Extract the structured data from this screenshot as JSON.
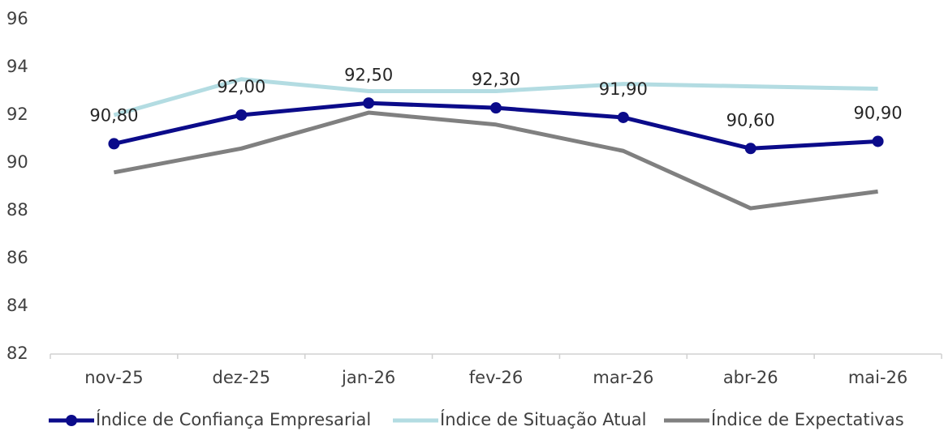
{
  "chart_data": {
    "type": "line",
    "categories": [
      "nov-25",
      "dez-25",
      "jan-26",
      "fev-26",
      "mar-26",
      "abr-26",
      "mai-26"
    ],
    "series": [
      {
        "name": "Índice de Confiança Empresarial",
        "color": "#0b0b8a",
        "marker": true,
        "values": [
          90.8,
          92.0,
          92.5,
          92.3,
          91.9,
          90.6,
          90.9
        ],
        "value_labels": [
          "90,80",
          "92,00",
          "92,50",
          "92,30",
          "91,90",
          "90,60",
          "90,90"
        ]
      },
      {
        "name": "Índice de Situação Atual",
        "color": "#b3dce2",
        "marker": false,
        "values": [
          92.0,
          93.5,
          93.0,
          93.0,
          93.3,
          93.2,
          93.1
        ]
      },
      {
        "name": "Índice de Expectativas",
        "color": "#808080",
        "marker": false,
        "values": [
          89.6,
          90.6,
          92.1,
          91.6,
          90.5,
          88.1,
          88.8
        ]
      }
    ],
    "ylim": [
      82,
      96
    ],
    "yticks": [
      82,
      84,
      86,
      88,
      90,
      92,
      94,
      96
    ],
    "grid": false,
    "legend": "bottom"
  }
}
